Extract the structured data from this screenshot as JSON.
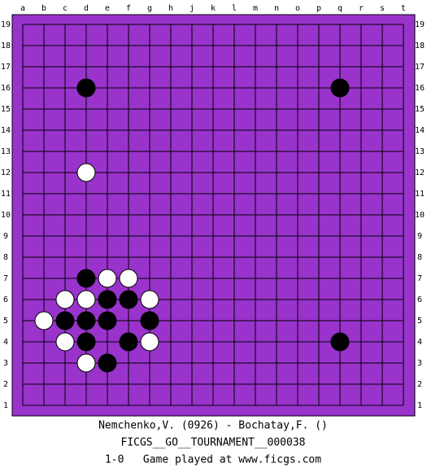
{
  "board": {
    "columns": [
      "a",
      "b",
      "c",
      "d",
      "e",
      "f",
      "g",
      "h",
      "j",
      "k",
      "l",
      "m",
      "n",
      "o",
      "p",
      "q",
      "r",
      "s",
      "t"
    ],
    "rows": [
      "19",
      "18",
      "17",
      "16",
      "15",
      "14",
      "13",
      "12",
      "11",
      "10",
      "9",
      "8",
      "7",
      "6",
      "5",
      "4",
      "3",
      "2",
      "1"
    ],
    "stones": {
      "black": [
        "d16",
        "q16",
        "d7",
        "e6",
        "f6",
        "c5",
        "d5",
        "e5",
        "g5",
        "d4",
        "f4",
        "q4",
        "e3"
      ],
      "white": [
        "d12",
        "e7",
        "f7",
        "c6",
        "d6",
        "g6",
        "b5",
        "c4",
        "g4",
        "d3"
      ]
    }
  },
  "caption": {
    "players": "Nemchenko,V. (0926) - Bochatay,F. ()",
    "event": "FICGS__GO__TOURNAMENT__000038",
    "result": "1-0   Game played at www.ficgs.com"
  }
}
